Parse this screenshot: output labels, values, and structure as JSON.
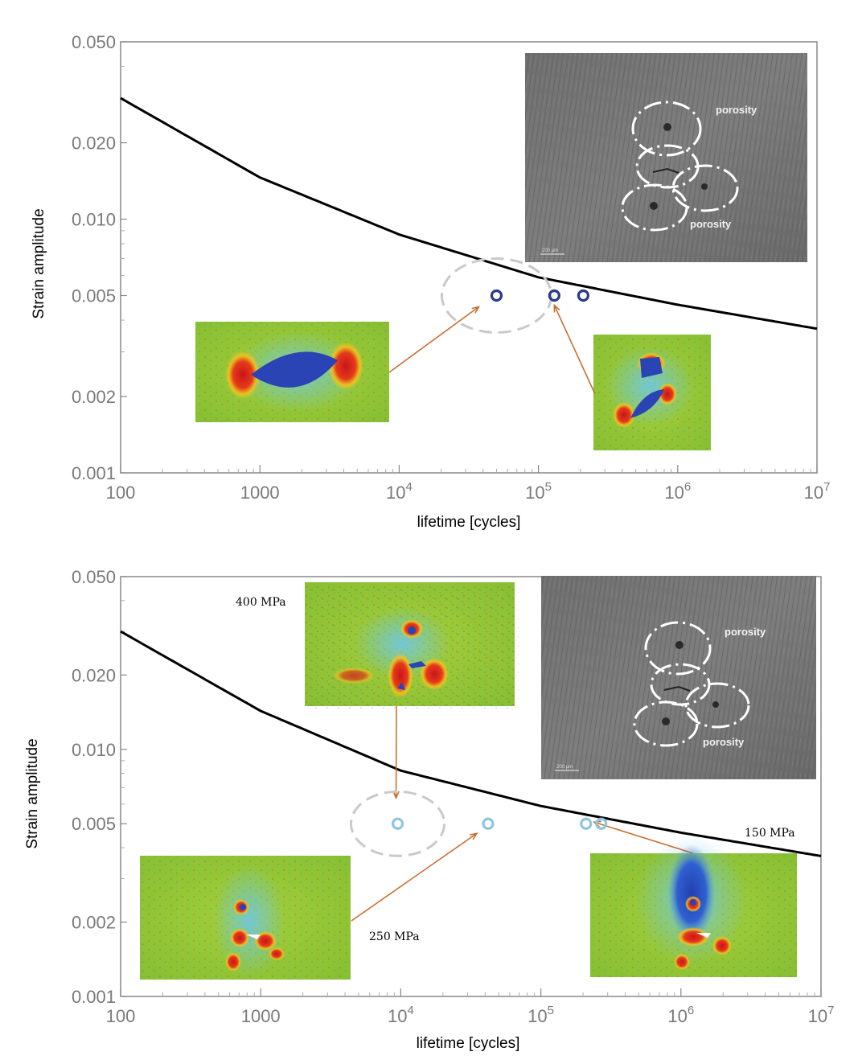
{
  "chart_data": [
    {
      "type": "scatter",
      "xlabel": "lifetime [cycles]",
      "ylabel": "Strain amplitude",
      "x_scale": "log",
      "y_scale": "log",
      "xlim": [
        100,
        10000000
      ],
      "ylim": [
        0.001,
        0.05
      ],
      "x_ticks": [
        {
          "value": 100,
          "label": "100"
        },
        {
          "value": 1000,
          "label": "1000"
        },
        {
          "value": 10000,
          "base": "10",
          "exp": "4"
        },
        {
          "value": 100000,
          "base": "10",
          "exp": "5"
        },
        {
          "value": 1000000,
          "base": "10",
          "exp": "6"
        },
        {
          "value": 10000000,
          "base": "10",
          "exp": "7"
        }
      ],
      "y_ticks": [
        {
          "value": 0.001,
          "label": "0.001"
        },
        {
          "value": 0.002,
          "label": "0.002"
        },
        {
          "value": 0.005,
          "label": "0.005"
        },
        {
          "value": 0.01,
          "label": "0.010"
        },
        {
          "value": 0.02,
          "label": "0.020"
        },
        {
          "value": 0.05,
          "label": "0.050"
        }
      ],
      "curve": {
        "x": [
          100,
          1000,
          10000,
          100000,
          1000000,
          10000000
        ],
        "y": [
          0.03,
          0.0146,
          0.0087,
          0.0059,
          0.0046,
          0.0037
        ]
      },
      "points": {
        "x": [
          50000,
          130000,
          210000
        ],
        "y": [
          0.005,
          0.005,
          0.005
        ],
        "color": "#2b3a8c"
      },
      "highlight": {
        "x": 50000,
        "y": 0.005
      },
      "inset_labels": [
        "porosity",
        "porosity"
      ],
      "scale_bar_label": "200 µm",
      "annotations": []
    },
    {
      "type": "scatter",
      "xlabel": "lifetime [cycles]",
      "ylabel": "Strain amplitude",
      "x_scale": "log",
      "y_scale": "log",
      "xlim": [
        100,
        10000000
      ],
      "ylim": [
        0.001,
        0.05
      ],
      "x_ticks": [
        {
          "value": 100,
          "label": "100"
        },
        {
          "value": 1000,
          "label": "1000"
        },
        {
          "value": 10000,
          "base": "10",
          "exp": "4"
        },
        {
          "value": 100000,
          "base": "10",
          "exp": "5"
        },
        {
          "value": 1000000,
          "base": "10",
          "exp": "6"
        },
        {
          "value": 10000000,
          "base": "10",
          "exp": "7"
        }
      ],
      "y_ticks": [
        {
          "value": 0.001,
          "label": "0.001"
        },
        {
          "value": 0.002,
          "label": "0.002"
        },
        {
          "value": 0.005,
          "label": "0.005"
        },
        {
          "value": 0.01,
          "label": "0.010"
        },
        {
          "value": 0.02,
          "label": "0.020"
        },
        {
          "value": 0.05,
          "label": "0.050"
        }
      ],
      "curve": {
        "x": [
          100,
          1000,
          10000,
          100000,
          1000000,
          10000000
        ],
        "y": [
          0.03,
          0.0143,
          0.0082,
          0.0059,
          0.0046,
          0.0037
        ]
      },
      "points": {
        "x": [
          9500,
          42000,
          210000,
          270000
        ],
        "y": [
          0.005,
          0.005,
          0.005,
          0.005
        ],
        "color": "#8fc6de"
      },
      "highlight": {
        "x": 9500,
        "y": 0.005
      },
      "inset_labels": [
        "porosity",
        "porosity"
      ],
      "scale_bar_label": "200 µm",
      "annotations": [
        "400 MPa",
        "250 MPa",
        "150 MPa"
      ]
    }
  ]
}
